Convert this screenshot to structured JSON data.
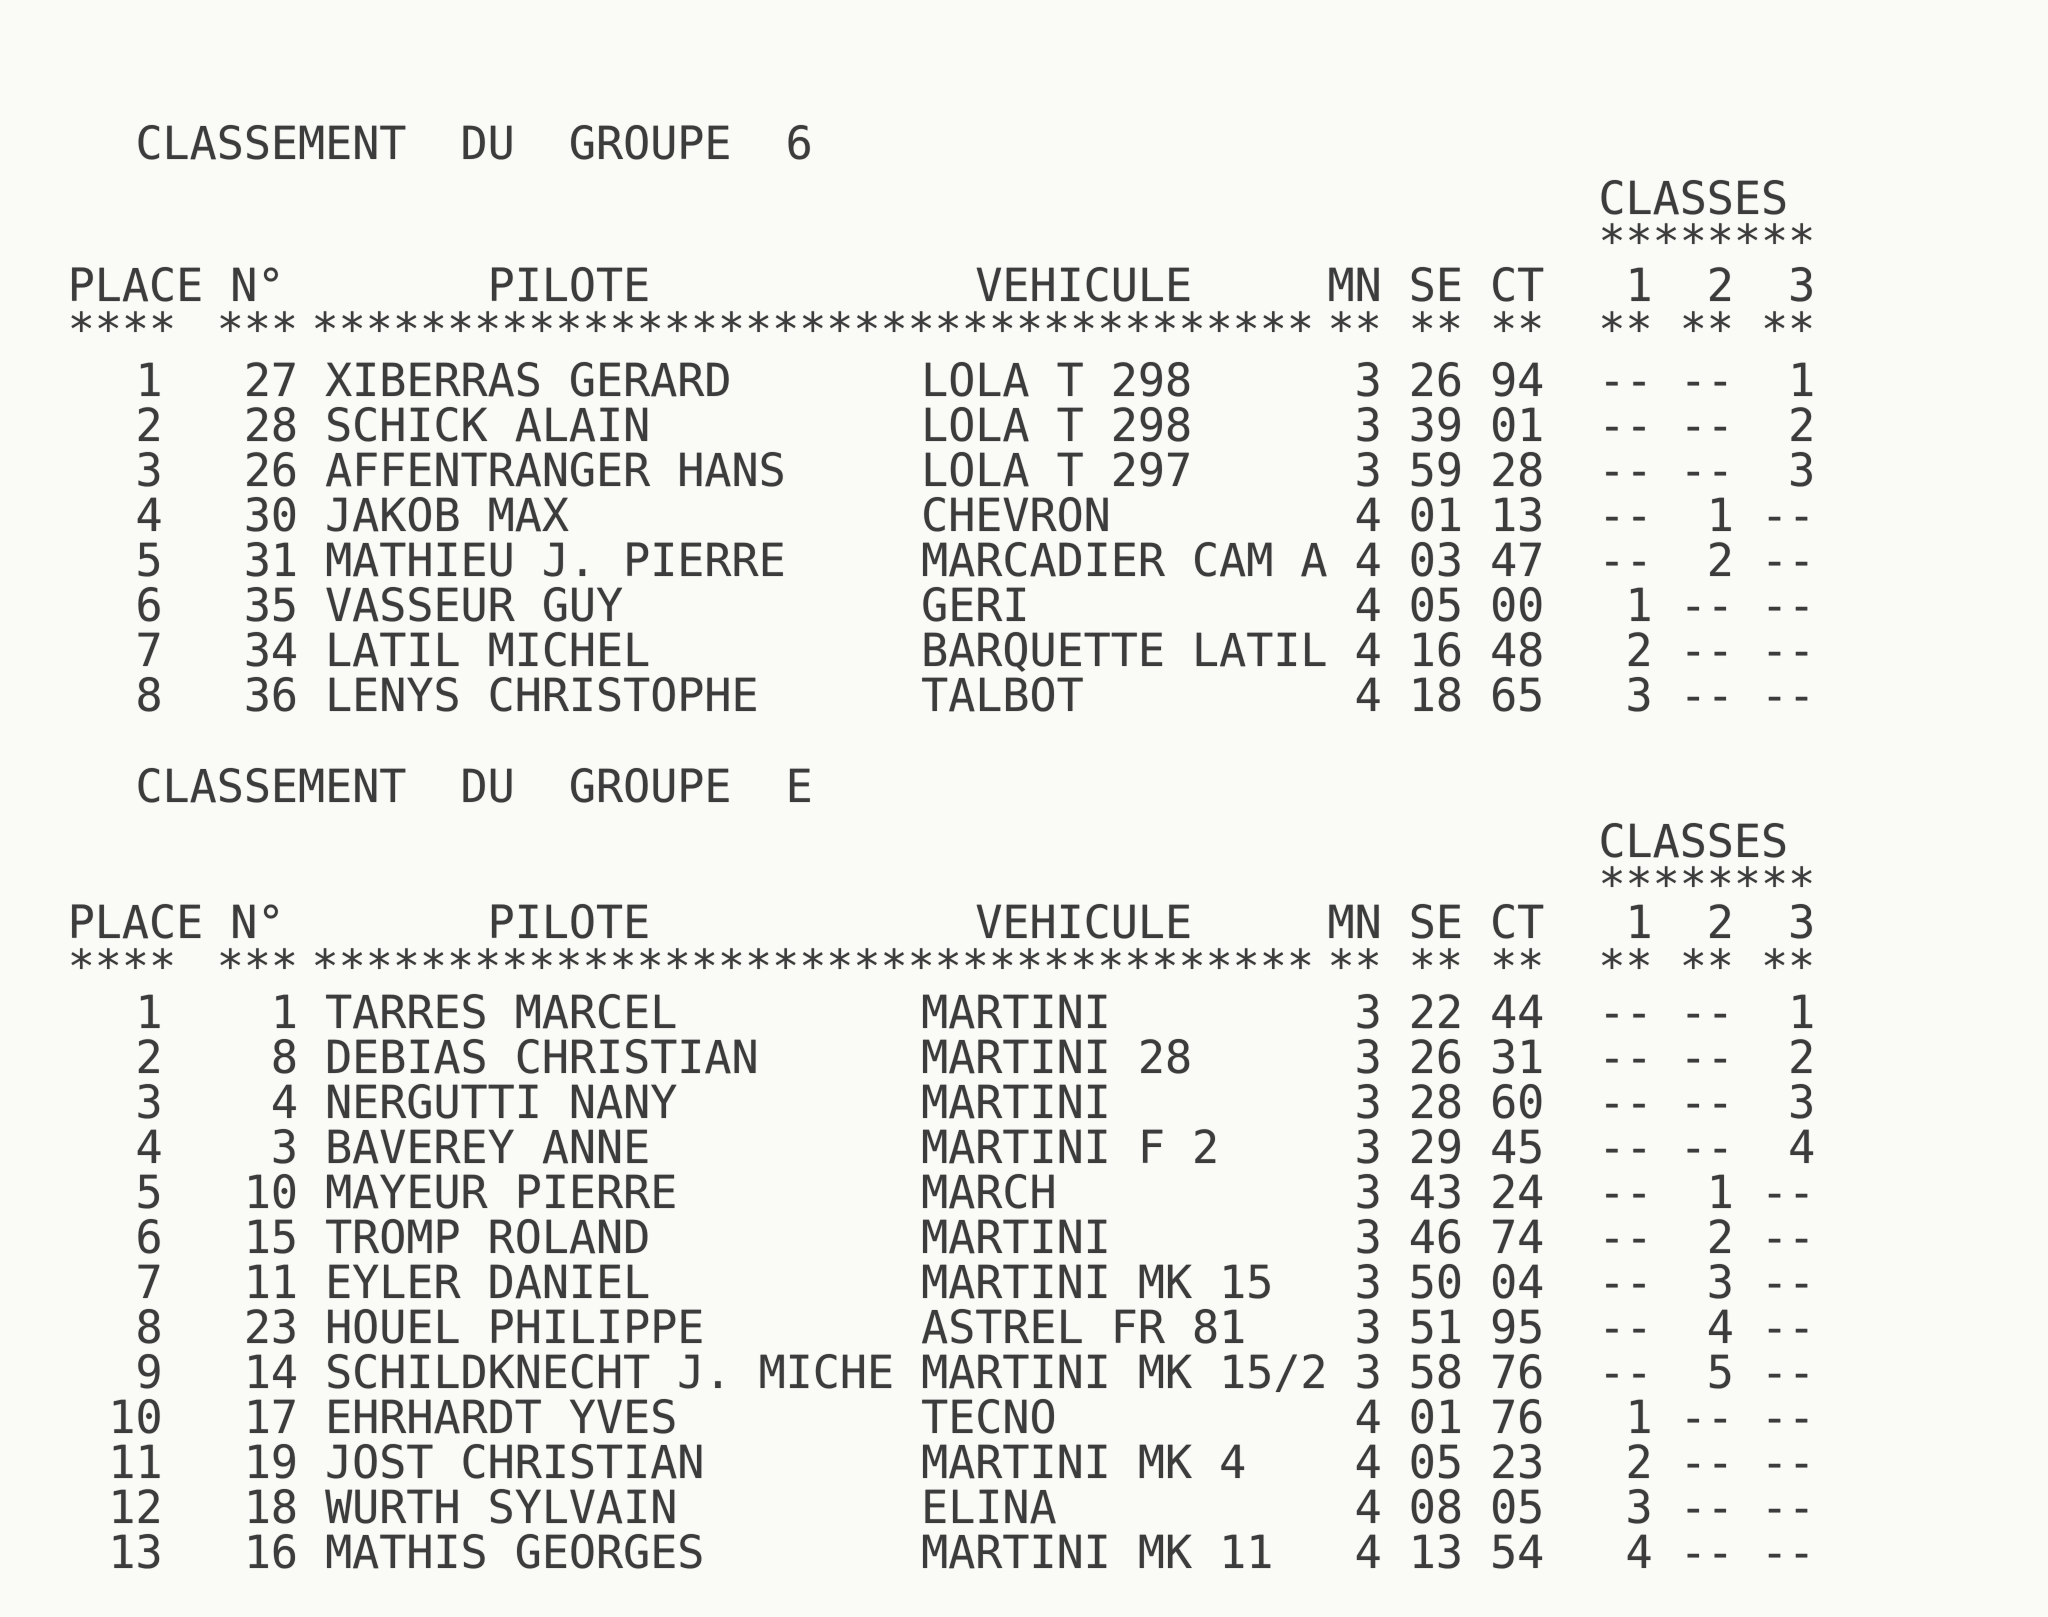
{
  "page": {
    "paper_color": "#fafaf7",
    "ink_color": "#2e2e2e"
  },
  "groups": [
    {
      "title": "CLASSEMENT  DU  GROUPE  6",
      "classes_label": "CLASSES",
      "classes_stars": "********",
      "header": {
        "place": "PLACE",
        "no": "N°",
        "pilote": "PILOTE",
        "vehicule": "VEHICULE",
        "mn": "MN",
        "se": "SE",
        "ct": "CT",
        "c1": "1",
        "c2": "2",
        "c3": "3"
      },
      "stars": {
        "place": "****",
        "no": "***",
        "pilote_vehicule": "*************************************",
        "mn": "**",
        "se": "**",
        "ct": "**",
        "c1": "**",
        "c2": "**",
        "c3": "**"
      },
      "rows": [
        {
          "place": "1",
          "no": "27",
          "pilote": "XIBERRAS GERARD",
          "vehicule": "LOLA T 298",
          "mn": "3",
          "se": "26",
          "ct": "94",
          "c1": "--",
          "c2": "--",
          "c3": "1"
        },
        {
          "place": "2",
          "no": "28",
          "pilote": "SCHICK ALAIN",
          "vehicule": "LOLA T 298",
          "mn": "3",
          "se": "39",
          "ct": "01",
          "c1": "--",
          "c2": "--",
          "c3": "2"
        },
        {
          "place": "3",
          "no": "26",
          "pilote": "AFFENTRANGER HANS",
          "vehicule": "LOLA T 297",
          "mn": "3",
          "se": "59",
          "ct": "28",
          "c1": "--",
          "c2": "--",
          "c3": "3"
        },
        {
          "place": "4",
          "no": "30",
          "pilote": "JAKOB MAX",
          "vehicule": "CHEVRON",
          "mn": "4",
          "se": "01",
          "ct": "13",
          "c1": "--",
          "c2": "1",
          "c3": "--"
        },
        {
          "place": "5",
          "no": "31",
          "pilote": "MATHIEU J. PIERRE",
          "vehicule": "MARCADIER CAM A",
          "mn": "4",
          "se": "03",
          "ct": "47",
          "c1": "--",
          "c2": "2",
          "c3": "--"
        },
        {
          "place": "6",
          "no": "35",
          "pilote": "VASSEUR GUY",
          "vehicule": "GERI",
          "mn": "4",
          "se": "05",
          "ct": "00",
          "c1": "1",
          "c2": "--",
          "c3": "--"
        },
        {
          "place": "7",
          "no": "34",
          "pilote": "LATIL MICHEL",
          "vehicule": "BARQUETTE LATIL",
          "mn": "4",
          "se": "16",
          "ct": "48",
          "c1": "2",
          "c2": "--",
          "c3": "--"
        },
        {
          "place": "8",
          "no": "36",
          "pilote": "LENYS CHRISTOPHE",
          "vehicule": "TALBOT",
          "mn": "4",
          "se": "18",
          "ct": "65",
          "c1": "3",
          "c2": "--",
          "c3": "--"
        }
      ]
    },
    {
      "title": "CLASSEMENT  DU  GROUPE  E",
      "classes_label": "CLASSES",
      "classes_stars": "********",
      "header": {
        "place": "PLACE",
        "no": "N°",
        "pilote": "PILOTE",
        "vehicule": "VEHICULE",
        "mn": "MN",
        "se": "SE",
        "ct": "CT",
        "c1": "1",
        "c2": "2",
        "c3": "3"
      },
      "stars": {
        "place": "****",
        "no": "***",
        "pilote_vehicule": "*************************************",
        "mn": "**",
        "se": "**",
        "ct": "**",
        "c1": "**",
        "c2": "**",
        "c3": "**"
      },
      "rows": [
        {
          "place": "1",
          "no": "1",
          "pilote": "TARRES MARCEL",
          "vehicule": "MARTINI",
          "mn": "3",
          "se": "22",
          "ct": "44",
          "c1": "--",
          "c2": "--",
          "c3": "1"
        },
        {
          "place": "2",
          "no": "8",
          "pilote": "DEBIAS CHRISTIAN",
          "vehicule": "MARTINI 28",
          "mn": "3",
          "se": "26",
          "ct": "31",
          "c1": "--",
          "c2": "--",
          "c3": "2"
        },
        {
          "place": "3",
          "no": "4",
          "pilote": "NERGUTTI NANY",
          "vehicule": "MARTINI",
          "mn": "3",
          "se": "28",
          "ct": "60",
          "c1": "--",
          "c2": "--",
          "c3": "3"
        },
        {
          "place": "4",
          "no": "3",
          "pilote": "BAVEREY ANNE",
          "vehicule": "MARTINI F 2",
          "mn": "3",
          "se": "29",
          "ct": "45",
          "c1": "--",
          "c2": "--",
          "c3": "4"
        },
        {
          "place": "5",
          "no": "10",
          "pilote": "MAYEUR PIERRE",
          "vehicule": "MARCH",
          "mn": "3",
          "se": "43",
          "ct": "24",
          "c1": "--",
          "c2": "1",
          "c3": "--"
        },
        {
          "place": "6",
          "no": "15",
          "pilote": "TROMP ROLAND",
          "vehicule": "MARTINI",
          "mn": "3",
          "se": "46",
          "ct": "74",
          "c1": "--",
          "c2": "2",
          "c3": "--"
        },
        {
          "place": "7",
          "no": "11",
          "pilote": "EYLER DANIEL",
          "vehicule": "MARTINI MK 15",
          "mn": "3",
          "se": "50",
          "ct": "04",
          "c1": "--",
          "c2": "3",
          "c3": "--"
        },
        {
          "place": "8",
          "no": "23",
          "pilote": "HOUEL PHILIPPE",
          "vehicule": "ASTREL FR 81",
          "mn": "3",
          "se": "51",
          "ct": "95",
          "c1": "--",
          "c2": "4",
          "c3": "--"
        },
        {
          "place": "9",
          "no": "14",
          "pilote": "SCHILDKNECHT J. MICHE",
          "vehicule": "MARTINI MK 15/2",
          "mn": "3",
          "se": "58",
          "ct": "76",
          "c1": "--",
          "c2": "5",
          "c3": "--"
        },
        {
          "place": "10",
          "no": "17",
          "pilote": "EHRHARDT YVES",
          "vehicule": "TECNO",
          "mn": "4",
          "se": "01",
          "ct": "76",
          "c1": "1",
          "c2": "--",
          "c3": "--"
        },
        {
          "place": "11",
          "no": "19",
          "pilote": "JOST CHRISTIAN",
          "vehicule": "MARTINI MK 4",
          "mn": "4",
          "se": "05",
          "ct": "23",
          "c1": "2",
          "c2": "--",
          "c3": "--"
        },
        {
          "place": "12",
          "no": "18",
          "pilote": "WURTH SYLVAIN",
          "vehicule": "ELINA",
          "mn": "4",
          "se": "08",
          "ct": "05",
          "c1": "3",
          "c2": "--",
          "c3": "--"
        },
        {
          "place": "13",
          "no": "16",
          "pilote": "MATHIS GEORGES",
          "vehicule": "MARTINI MK 11",
          "mn": "4",
          "se": "13",
          "ct": "54",
          "c1": "4",
          "c2": "--",
          "c3": "--"
        }
      ]
    }
  ]
}
